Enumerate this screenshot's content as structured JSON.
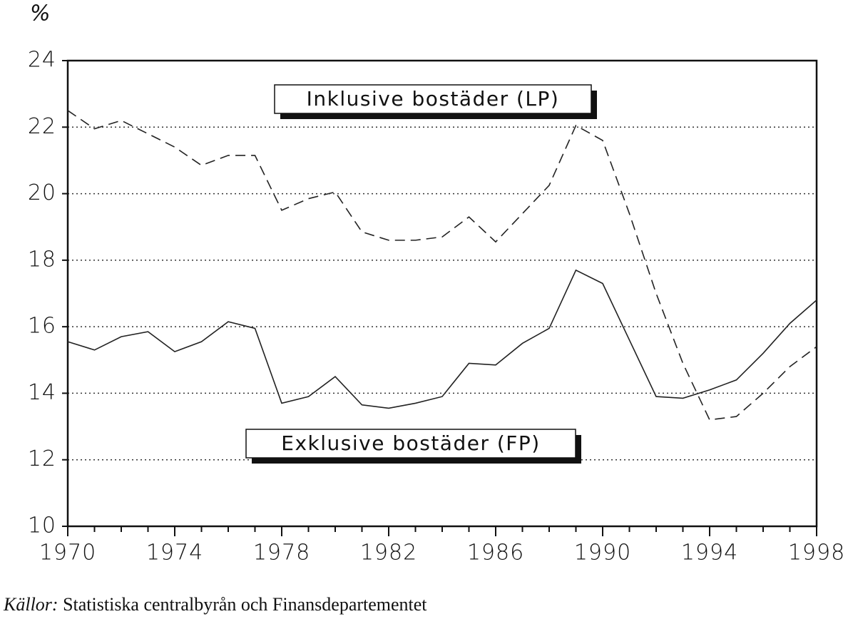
{
  "chart_data": {
    "type": "line",
    "y_unit": "%",
    "x": [
      1970,
      1971,
      1972,
      1973,
      1974,
      1975,
      1976,
      1977,
      1978,
      1979,
      1980,
      1981,
      1982,
      1983,
      1984,
      1985,
      1986,
      1987,
      1988,
      1989,
      1990,
      1991,
      1992,
      1993,
      1994,
      1995,
      1996,
      1997,
      1998
    ],
    "series": [
      {
        "name": "Inklusive bostäder (LP)",
        "color": "#222",
        "dash": true,
        "values": [
          22.5,
          21.95,
          22.2,
          21.8,
          21.4,
          20.85,
          21.15,
          21.15,
          19.5,
          19.85,
          20.05,
          18.85,
          18.6,
          18.6,
          18.7,
          19.3,
          18.55,
          19.4,
          20.25,
          22.05,
          21.6,
          19.4,
          17.0,
          14.9,
          13.2,
          13.3,
          14.0,
          14.8,
          15.4
        ]
      },
      {
        "name": "Exklusive bostäder (FP)",
        "color": "#222",
        "dash": false,
        "values": [
          15.55,
          15.3,
          15.7,
          15.85,
          15.25,
          15.55,
          16.15,
          15.95,
          13.7,
          13.9,
          14.5,
          13.65,
          13.55,
          13.7,
          13.9,
          14.9,
          14.85,
          15.5,
          15.95,
          17.7,
          17.3,
          15.6,
          13.9,
          13.85,
          14.1,
          14.4,
          15.2,
          16.1,
          16.8
        ]
      }
    ],
    "xlim": [
      1970,
      1998
    ],
    "xticks": [
      1970,
      1974,
      1978,
      1982,
      1986,
      1990,
      1994,
      1998
    ],
    "ylim": [
      10,
      24
    ],
    "yticks": [
      10,
      12,
      14,
      16,
      18,
      20,
      22,
      24
    ],
    "grid": true,
    "source": {
      "label": "Källor:",
      "text": "Statistiska centralbyrån och Finansdepartementet"
    }
  }
}
